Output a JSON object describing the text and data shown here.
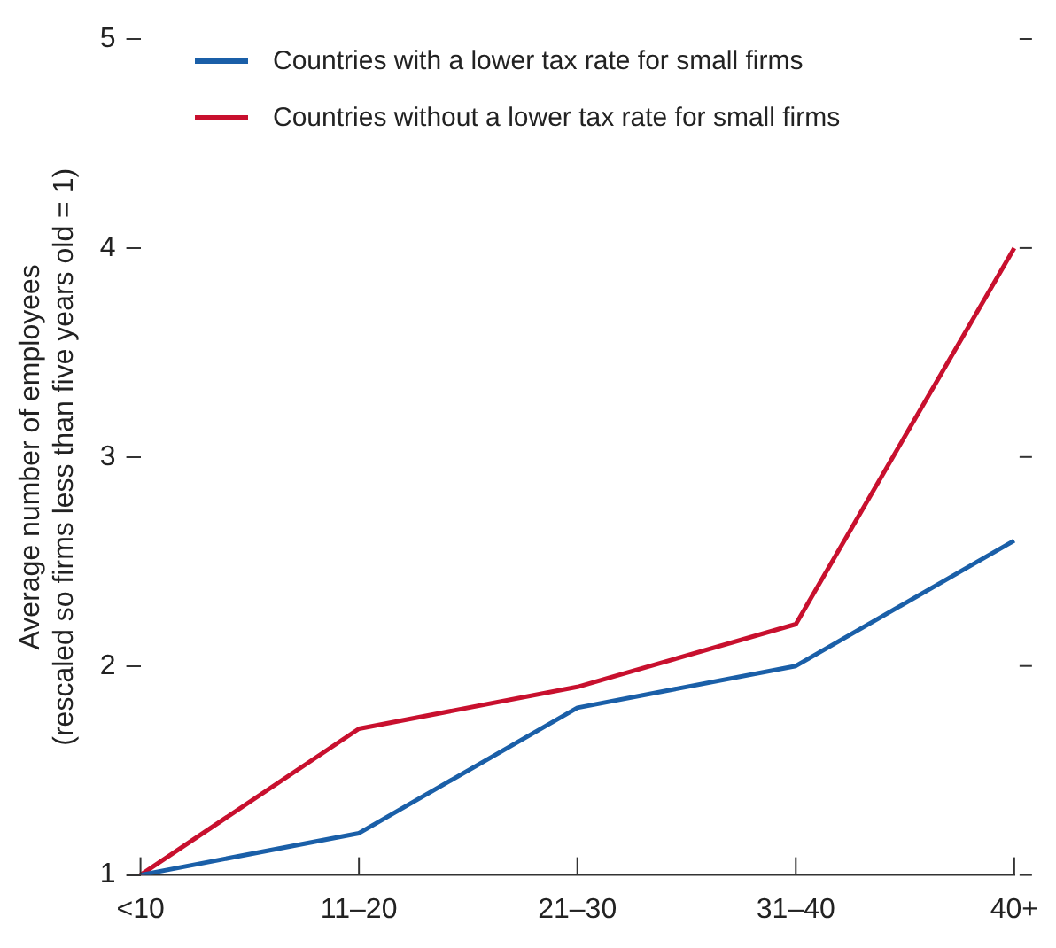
{
  "chart_data": {
    "type": "line",
    "ylabel": "Average number of employees\n(rescaled so firms less than five years old = 1)",
    "categories": [
      "<10",
      "11–20",
      "21–30",
      "31–40",
      "40+"
    ],
    "series": [
      {
        "name": "Countries with a lower tax rate for small firms",
        "color": "#1a5fa8",
        "values": [
          1,
          1.2,
          1.8,
          2.0,
          2.6
        ]
      },
      {
        "name": "Countries without a lower tax rate for small firms",
        "color": "#c8102e",
        "values": [
          1,
          1.7,
          1.9,
          2.2,
          4.0
        ]
      }
    ],
    "ylim": [
      1,
      5
    ],
    "yticks": [
      1,
      2,
      3,
      4,
      5
    ],
    "grid": false,
    "legend": "top left",
    "marker": "none",
    "line_style": "solid"
  }
}
